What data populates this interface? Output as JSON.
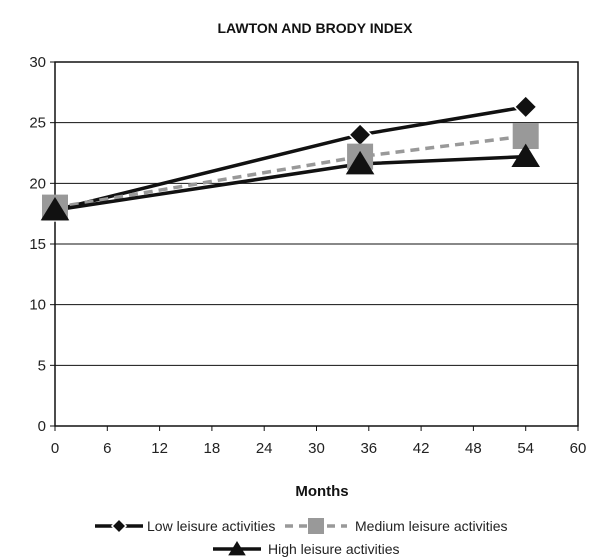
{
  "chart_data": {
    "type": "line",
    "title": "LAWTON AND BRODY INDEX",
    "xlabel": "Months",
    "ylabel": "",
    "xlim": [
      0,
      60
    ],
    "ylim": [
      0,
      30
    ],
    "xticks": [
      0,
      6,
      12,
      18,
      24,
      30,
      36,
      42,
      48,
      54,
      60
    ],
    "yticks": [
      0,
      5,
      10,
      15,
      20,
      25,
      30
    ],
    "grid": "horizontal",
    "legend_position": "bottom",
    "series": [
      {
        "name": "Low leisure activities",
        "marker": "diamond",
        "line_style": "solid",
        "color": "#111111",
        "x": [
          0,
          35,
          54
        ],
        "y": [
          17.8,
          24.0,
          26.3
        ]
      },
      {
        "name": "Medium leisure activities",
        "marker": "square",
        "line_style": "dashed",
        "color": "#999999",
        "x": [
          0,
          35,
          54
        ],
        "y": [
          18.0,
          22.2,
          23.9
        ]
      },
      {
        "name": "High leisure activities",
        "marker": "triangle",
        "line_style": "solid",
        "color": "#111111",
        "x": [
          0,
          35,
          54
        ],
        "y": [
          17.8,
          21.6,
          22.2
        ]
      }
    ]
  }
}
